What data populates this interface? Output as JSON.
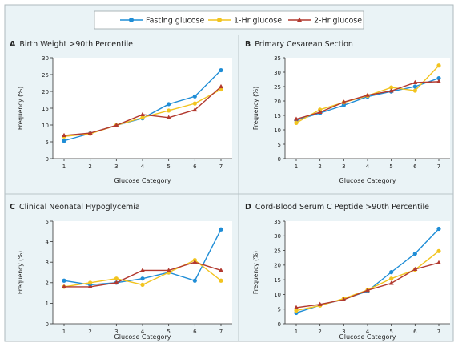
{
  "colors": {
    "fasting": "#1f8dd6",
    "one_hr": "#f2c41f",
    "two_hr": "#b2392f",
    "panel_bg": "#eaf3f6",
    "inner_bg": "#ffffff",
    "axis": "#333333",
    "text": "#222222"
  },
  "legend": {
    "items": [
      {
        "label": "Fasting glucose",
        "color": "#1f8dd6",
        "marker": "circle"
      },
      {
        "label": "1-Hr glucose",
        "color": "#f2c41f",
        "marker": "circle"
      },
      {
        "label": "2-Hr glucose",
        "color": "#b2392f",
        "marker": "triangle"
      }
    ]
  },
  "chart_data": [
    {
      "type": "line",
      "letter": "A",
      "title": "Birth Weight >90th Percentile",
      "xlabel": "Glucose Category",
      "ylabel": "Frequency (%)",
      "x": [
        1,
        2,
        3,
        4,
        5,
        6,
        7
      ],
      "ylim": [
        0,
        30
      ],
      "yticks": [
        0,
        5,
        10,
        15,
        20,
        25,
        30
      ],
      "series": [
        {
          "name": "Fasting glucose",
          "values": [
            5.3,
            7.5,
            9.9,
            12.0,
            16.2,
            18.5,
            26.3
          ]
        },
        {
          "name": "1-Hr glucose",
          "values": [
            6.6,
            7.4,
            9.9,
            12.2,
            14.3,
            16.4,
            20.6
          ]
        },
        {
          "name": "2-Hr glucose",
          "values": [
            6.9,
            7.6,
            9.9,
            13.1,
            12.2,
            14.5,
            21.4
          ]
        }
      ]
    },
    {
      "type": "line",
      "letter": "B",
      "title": "Primary Cesarean Section",
      "xlabel": "Glucose Category",
      "ylabel": "Frequency (%)",
      "x": [
        1,
        2,
        3,
        4,
        5,
        6,
        7
      ],
      "ylim": [
        0,
        35
      ],
      "yticks": [
        0,
        5,
        10,
        15,
        20,
        25,
        30,
        35
      ],
      "series": [
        {
          "name": "Fasting glucose",
          "values": [
            13.3,
            15.8,
            18.5,
            21.5,
            23.3,
            25.0,
            27.9
          ]
        },
        {
          "name": "1-Hr glucose",
          "values": [
            12.4,
            17.0,
            19.5,
            21.8,
            24.7,
            23.6,
            32.3
          ]
        },
        {
          "name": "2-Hr glucose",
          "values": [
            13.7,
            16.1,
            19.6,
            22.0,
            23.5,
            26.4,
            26.7
          ]
        }
      ]
    },
    {
      "type": "line",
      "letter": "C",
      "title": "Clinical Neonatal Hypoglycemia",
      "xlabel": "Glucose Category",
      "ylabel": "Frequency (%)",
      "x": [
        1,
        2,
        3,
        4,
        5,
        6,
        7
      ],
      "ylim": [
        0,
        5
      ],
      "yticks": [
        0,
        1,
        2,
        3,
        4,
        5
      ],
      "series": [
        {
          "name": "Fasting glucose",
          "values": [
            2.1,
            1.9,
            2.0,
            2.2,
            2.5,
            2.1,
            4.6
          ]
        },
        {
          "name": "1-Hr glucose",
          "values": [
            1.8,
            2.0,
            2.2,
            1.9,
            2.5,
            3.1,
            2.1
          ]
        },
        {
          "name": "2-Hr glucose",
          "values": [
            1.8,
            1.8,
            2.0,
            2.6,
            2.6,
            3.0,
            2.6
          ]
        }
      ]
    },
    {
      "type": "line",
      "letter": "D",
      "title": "Cord-Blood Serum C Peptide >90th Percentile",
      "xlabel": "Glucose Category",
      "ylabel": "Frequency (%)",
      "x": [
        1,
        2,
        3,
        4,
        5,
        6,
        7
      ],
      "ylim": [
        0,
        35
      ],
      "yticks": [
        0,
        5,
        10,
        15,
        20,
        25,
        30,
        35
      ],
      "series": [
        {
          "name": "Fasting glucose",
          "values": [
            3.7,
            6.3,
            8.4,
            11.1,
            17.6,
            23.9,
            32.4
          ]
        },
        {
          "name": "1-Hr glucose",
          "values": [
            4.5,
            6.2,
            8.6,
            11.5,
            15.4,
            18.4,
            24.8
          ]
        },
        {
          "name": "2-Hr glucose",
          "values": [
            5.5,
            6.6,
            8.2,
            11.4,
            13.8,
            18.6,
            20.8
          ]
        }
      ]
    }
  ]
}
